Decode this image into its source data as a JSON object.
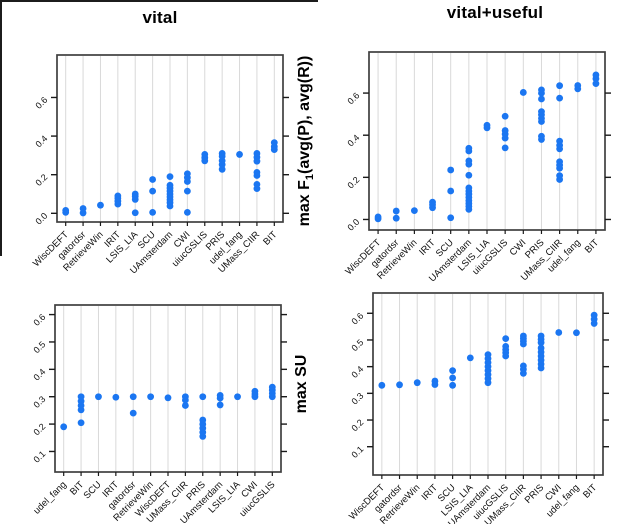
{
  "titles": {
    "left": "vital",
    "right": "vital+useful"
  },
  "y_axis_titles": {
    "top": {
      "pre": "max F",
      "sub": "1",
      "post": "(avg(P), avg(R))"
    },
    "bottom": {
      "text": "max SU"
    }
  },
  "colors": {
    "dot": "#1b76f1",
    "grid": "#d9d9d9",
    "frame": "#3f3f3f",
    "tick": "#1a1a1a",
    "text": "#111111"
  },
  "chart_data": [
    {
      "id": "vital-f1",
      "type": "scatter",
      "title": "vital",
      "ylabel": "max F1(avg(P), avg(R))",
      "grid": "vertical",
      "yticks": [
        0.0,
        0.2,
        0.4,
        0.6
      ],
      "ytick_labels": [
        "0.0",
        "0.2",
        "0.4",
        "0.6"
      ],
      "ylim": [
        -0.045,
        0.82
      ],
      "categories": [
        "WiscDEFT",
        "gatordsr",
        "RetrieveWin",
        "IRIT",
        "LSIS_LIA",
        "SCU",
        "UAmsterdam",
        "CWI",
        "uiucGSLIS",
        "PRIS",
        "udel_fang",
        "UMass_CIIR",
        "BIT"
      ],
      "values": [
        [
          0.005,
          0.015
        ],
        [
          0.002,
          0.025
        ],
        [
          0.042
        ],
        [
          0.048,
          0.063,
          0.078,
          0.09
        ],
        [
          0.003,
          0.072,
          0.088,
          0.1
        ],
        [
          0.005,
          0.115,
          0.175
        ],
        [
          0.038,
          0.055,
          0.07,
          0.085,
          0.1,
          0.115,
          0.13,
          0.145,
          0.19
        ],
        [
          0.005,
          0.115,
          0.165,
          0.185,
          0.205
        ],
        [
          0.272,
          0.288,
          0.305
        ],
        [
          0.228,
          0.252,
          0.272,
          0.295,
          0.31
        ],
        [
          0.305
        ],
        [
          0.128,
          0.15,
          0.196,
          0.212,
          0.27,
          0.29,
          0.31
        ],
        [
          0.33,
          0.345,
          0.366
        ]
      ]
    },
    {
      "id": "vital-useful-f1",
      "type": "scatter",
      "title": "vital+useful",
      "ylabel": "max F1(avg(P), avg(R))",
      "grid": "vertical",
      "yticks": [
        0.0,
        0.2,
        0.4,
        0.6
      ],
      "ytick_labels": [
        "0.0",
        "0.2",
        "0.4",
        "0.6"
      ],
      "ylim": [
        -0.05,
        0.795
      ],
      "categories": [
        "WiscDEFT",
        "gatordsr",
        "RetrieveWin",
        "IRIT",
        "SCU",
        "UAmsterdam",
        "LSIS_LIA",
        "uiucGSLIS",
        "CWI",
        "PRIS",
        "UMass_CIIR",
        "udel_fang",
        "BIT"
      ],
      "values": [
        [
          0.003,
          0.012
        ],
        [
          0.006,
          0.04
        ],
        [
          0.042
        ],
        [
          0.056,
          0.07,
          0.082
        ],
        [
          0.008,
          0.135,
          0.235
        ],
        [
          0.048,
          0.062,
          0.076,
          0.09,
          0.105,
          0.12,
          0.135,
          0.15,
          0.21,
          0.262,
          0.278,
          0.325,
          0.338
        ],
        [
          0.435,
          0.447
        ],
        [
          0.34,
          0.386,
          0.405,
          0.422,
          0.49
        ],
        [
          0.603
        ],
        [
          0.38,
          0.395,
          0.465,
          0.48,
          0.497,
          0.512,
          0.572,
          0.6,
          0.615
        ],
        [
          0.19,
          0.208,
          0.243,
          0.258,
          0.274,
          0.335,
          0.352,
          0.372,
          0.576,
          0.635
        ],
        [
          0.62,
          0.636
        ],
        [
          0.645,
          0.668,
          0.686
        ]
      ]
    },
    {
      "id": "vital-su",
      "type": "scatter",
      "title": "vital",
      "ylabel": "max SU",
      "grid": "vertical",
      "yticks": [
        0.1,
        0.2,
        0.3,
        0.4,
        0.5,
        0.6
      ],
      "ytick_labels": [
        "0.1",
        "0.2",
        "0.3",
        "0.4",
        "0.5",
        "0.6"
      ],
      "ylim": [
        0.025,
        0.635
      ],
      "categories": [
        "udel_fang",
        "BIT",
        "SCU",
        "IRIT",
        "gatordsr",
        "RetrieveWin",
        "WiscDEFT",
        "UMass_CIIR",
        "PRIS",
        "UAmsterdam",
        "LSIS_LIA",
        "CWI",
        "uiucGSLIS"
      ],
      "values": [
        [
          0.19
        ],
        [
          0.205,
          0.252,
          0.268,
          0.284,
          0.3
        ],
        [
          0.3
        ],
        [
          0.298
        ],
        [
          0.24,
          0.3
        ],
        [
          0.3
        ],
        [
          0.296
        ],
        [
          0.268,
          0.288,
          0.3
        ],
        [
          0.155,
          0.17,
          0.185,
          0.2,
          0.215,
          0.3
        ],
        [
          0.27,
          0.295,
          0.305
        ],
        [
          0.3
        ],
        [
          0.3,
          0.31,
          0.32
        ],
        [
          0.3,
          0.312,
          0.324,
          0.335
        ]
      ]
    },
    {
      "id": "vital-useful-su",
      "type": "scatter",
      "title": "vital+useful",
      "ylabel": "max SU",
      "grid": "vertical",
      "yticks": [
        0.1,
        0.2,
        0.3,
        0.4,
        0.5,
        0.6
      ],
      "ytick_labels": [
        "0.1",
        "0.2",
        "0.3",
        "0.4",
        "0.5",
        "0.6"
      ],
      "ylim": [
        -0.006,
        0.676
      ],
      "categories": [
        "WiscDEFT",
        "gatordsr",
        "RetrieveWin",
        "IRIT",
        "SCU",
        "LSIS_LIA",
        "UAmsterdam",
        "uiucGSLIS",
        "UMass_CIIR",
        "PRIS",
        "CWI",
        "udel_fang",
        "BIT"
      ],
      "values": [
        [
          0.33
        ],
        [
          0.332
        ],
        [
          0.34
        ],
        [
          0.333,
          0.346
        ],
        [
          0.33,
          0.358,
          0.385
        ],
        [
          0.433
        ],
        [
          0.34,
          0.355,
          0.37,
          0.385,
          0.4,
          0.415,
          0.43,
          0.445
        ],
        [
          0.44,
          0.452,
          0.464,
          0.476,
          0.505
        ],
        [
          0.375,
          0.39,
          0.403,
          0.485,
          0.495,
          0.505,
          0.515
        ],
        [
          0.395,
          0.41,
          0.425,
          0.44,
          0.455,
          0.47,
          0.49,
          0.502,
          0.515
        ],
        [
          0.528
        ],
        [
          0.527
        ],
        [
          0.562,
          0.578,
          0.593
        ]
      ]
    }
  ]
}
